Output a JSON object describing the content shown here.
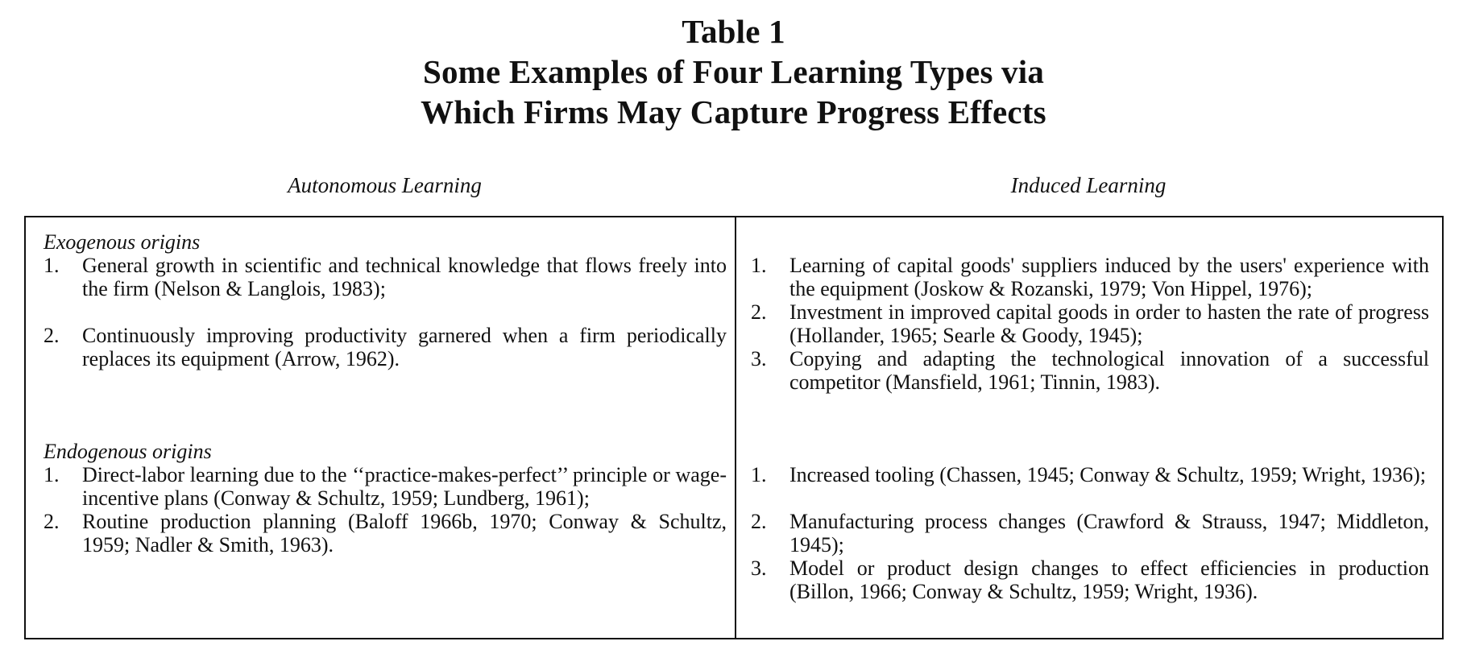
{
  "title": {
    "line1": "Table 1",
    "line2": "Some Examples of Four Learning Types via",
    "line3": "Which Firms May Capture Progress Effects"
  },
  "columns": {
    "left": "Autonomous Learning",
    "right": "Induced Learning"
  },
  "sections": [
    {
      "label": "Exogenous origins",
      "autonomous": [
        {
          "num": "1.",
          "text": "General growth in scientific and technical knowledge that flows freely into the firm (Nelson & Langlois, 1983);"
        },
        {
          "num": "2.",
          "text": "Continuously improving productivity garnered when a firm periodically replaces its equipment (Arrow, 1962)."
        }
      ],
      "induced": [
        {
          "num": "1.",
          "text": "Learning of capital goods' suppliers induced by the users' experience with the equipment (Joskow & Rozanski, 1979; Von Hippel, 1976);"
        },
        {
          "num": "2.",
          "text": "Investment in improved capital goods in order to hasten the rate of progress (Hollander, 1965; Searle & Goody, 1945);"
        },
        {
          "num": "3.",
          "text": "Copying and adapting the technological innovation of a successful competitor (Mansfield, 1961; Tinnin, 1983)."
        }
      ]
    },
    {
      "label": "Endogenous origins",
      "autonomous": [
        {
          "num": "1.",
          "text": "Direct-labor learning due to the ‘‘practice-makes-perfect’’ principle or wage-incentive plans (Conway & Schultz, 1959; Lundberg, 1961);"
        },
        {
          "num": "2.",
          "text": "Routine production planning (Baloff 1966b, 1970; Conway & Schultz, 1959; Nadler & Smith, 1963)."
        }
      ],
      "induced": [
        {
          "num": "1.",
          "text": "Increased tooling (Chassen, 1945; Conway & Schultz, 1959; Wright, 1936);"
        },
        {
          "num": "2.",
          "text": "Manufacturing process changes (Crawford & Strauss, 1947; Middleton, 1945);"
        },
        {
          "num": "3.",
          "text": "Model or product design changes to effect efficiencies in production (Billon, 1966; Conway & Schultz, 1959; Wright, 1936)."
        }
      ]
    }
  ]
}
